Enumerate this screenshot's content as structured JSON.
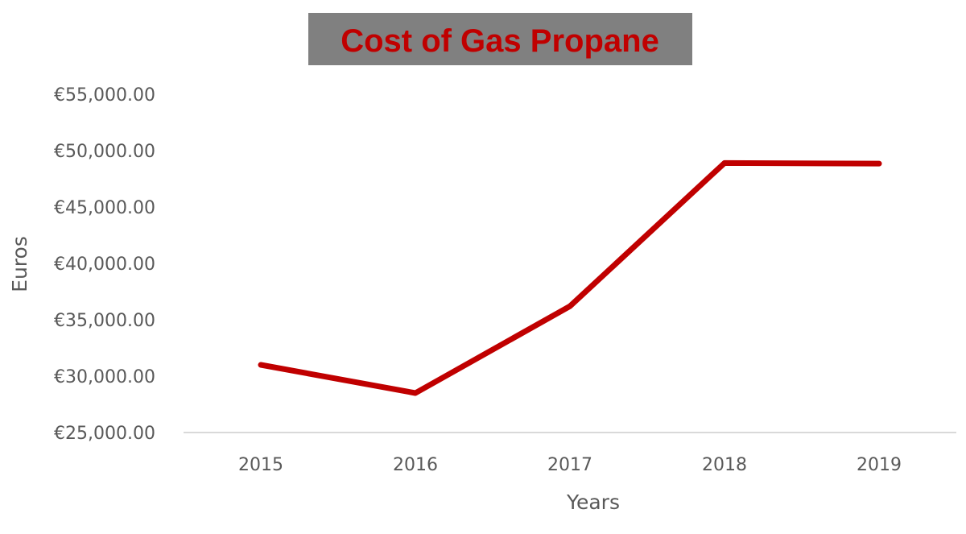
{
  "chart_data": {
    "type": "line",
    "title": "Cost of Gas Propane",
    "xlabel": "Years",
    "ylabel": "Euros",
    "categories": [
      "2015",
      "2016",
      "2017",
      "2018",
      "2019"
    ],
    "series": [
      {
        "values": [
          31000,
          28500,
          36200,
          48900,
          48850
        ]
      }
    ],
    "ylim": [
      25000,
      55000
    ],
    "yticks": [
      25000,
      30000,
      35000,
      40000,
      45000,
      50000,
      55000
    ],
    "ytick_labels": [
      "€25,000.00",
      "€30,000.00",
      "€35,000.00",
      "€40,000.00",
      "€45,000.00",
      "€50,000.00",
      "€55,000.00"
    ],
    "grid": false,
    "legend": "none",
    "colors": {
      "line": "#c00000",
      "title_text": "#c00000",
      "title_background": "#808080"
    }
  }
}
